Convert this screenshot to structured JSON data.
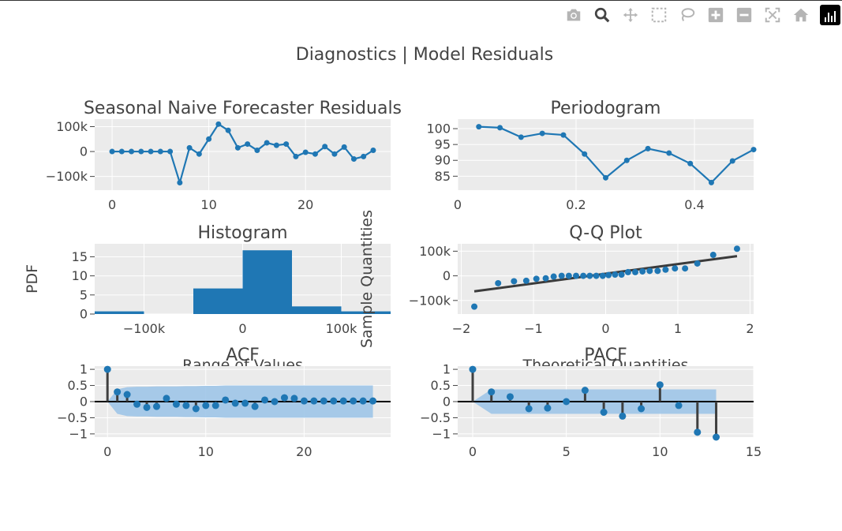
{
  "figure": {
    "title": "Diagnostics | Model Residuals"
  },
  "modebar": {
    "buttons": [
      "camera-icon",
      "zoom-icon",
      "pan-icon",
      "box-select-icon",
      "lasso-icon",
      "zoom-in-icon",
      "zoom-out-icon",
      "autoscale-icon",
      "home-icon",
      "plotly-logo-icon"
    ]
  },
  "colors": {
    "series": "#1f77b4",
    "plot_bg": "#ebebeb",
    "grid": "#ffffff",
    "text": "#444444",
    "qq_line": "#3b3b3b",
    "confint": "#9fc5e8"
  },
  "chart_data": [
    {
      "type": "line",
      "title": "Seasonal Naive Forecaster Residuals",
      "x": [
        0,
        1,
        2,
        3,
        4,
        5,
        6,
        7,
        8,
        9,
        10,
        11,
        12,
        13,
        14,
        15,
        16,
        17,
        18,
        19,
        20,
        21,
        22,
        23,
        24,
        25,
        26,
        27
      ],
      "y": [
        0,
        0,
        0,
        0,
        0,
        0,
        0,
        -125000,
        15000,
        -10000,
        50000,
        110000,
        85000,
        15000,
        30000,
        5000,
        35000,
        25000,
        30000,
        -20000,
        -3000,
        -10000,
        20000,
        -10000,
        18000,
        -30000,
        -20000,
        5000
      ],
      "xlim": [
        -1.8,
        28.8
      ],
      "ylim": [
        -155000,
        130000
      ],
      "xticks": [
        0,
        10,
        20
      ],
      "yticks": [
        -100000,
        0,
        100000
      ],
      "ytick_labels": [
        "−100k",
        "0",
        "100k"
      ]
    },
    {
      "type": "line",
      "title": "Periodogram",
      "x": [
        0.0357,
        0.0714,
        0.1071,
        0.1429,
        0.1786,
        0.2143,
        0.25,
        0.2857,
        0.3214,
        0.3571,
        0.3929,
        0.4286,
        0.4643,
        0.5
      ],
      "y": [
        100.6,
        100.3,
        97.3,
        98.5,
        98.0,
        92.0,
        84.5,
        90.0,
        93.7,
        92.3,
        89.0,
        83.0,
        89.8,
        93.4
      ],
      "xlim": [
        0,
        0.5
      ],
      "ylim": [
        80.6,
        103
      ],
      "xticks": [
        0,
        0.2,
        0.4
      ],
      "yticks": [
        85,
        90,
        95,
        100
      ]
    },
    {
      "type": "bar",
      "title": "Histogram",
      "xlabel": "Range of Values",
      "ylabel": "PDF",
      "bins": [
        {
          "x0": -150000,
          "x1": -100000,
          "value": 0.7
        },
        {
          "x0": -100000,
          "x1": -50000,
          "value": 0
        },
        {
          "x0": -50000,
          "x1": 0,
          "value": 6.7
        },
        {
          "x0": 0,
          "x1": 50000,
          "value": 16.7
        },
        {
          "x0": 50000,
          "x1": 100000,
          "value": 2.0
        },
        {
          "x0": 100000,
          "x1": 150000,
          "value": 0.7
        }
      ],
      "xlim": [
        -150000,
        150000
      ],
      "ylim": [
        0,
        18.4
      ],
      "xticks": [
        -100000,
        0,
        100000
      ],
      "xtick_labels": [
        "−100k",
        "0",
        "100k"
      ],
      "yticks": [
        0,
        5,
        10,
        15
      ]
    },
    {
      "type": "scatter",
      "title": "Q-Q Plot",
      "xlabel": "Theoretical Quantities",
      "ylabel": "Sample Quantities",
      "x": [
        -1.82,
        -1.49,
        -1.27,
        -1.1,
        -0.96,
        -0.83,
        -0.72,
        -0.61,
        -0.51,
        -0.41,
        -0.31,
        -0.22,
        -0.13,
        -0.04,
        0.04,
        0.13,
        0.22,
        0.31,
        0.41,
        0.51,
        0.61,
        0.72,
        0.83,
        0.96,
        1.1,
        1.27,
        1.49,
        1.82
      ],
      "y": [
        -125000,
        -30000,
        -22000,
        -20000,
        -12000,
        -10000,
        -3000,
        0,
        0,
        0,
        0,
        0,
        0,
        0,
        3000,
        5000,
        5000,
        15000,
        15000,
        18000,
        20000,
        20000,
        25000,
        30000,
        30000,
        50000,
        85000,
        110000
      ],
      "line": {
        "x": [
          -1.82,
          1.82
        ],
        "y": [
          -63000,
          80000
        ]
      },
      "xlim": [
        -2.05,
        2.05
      ],
      "ylim": [
        -155000,
        130000
      ],
      "xticks": [
        -2,
        -1,
        0,
        1,
        2
      ],
      "xtick_labels": [
        "−2",
        "−1",
        "0",
        "1",
        "2"
      ],
      "yticks": [
        -100000,
        0,
        100000
      ],
      "ytick_labels": [
        "−100k",
        "0",
        "100k"
      ]
    },
    {
      "type": "bar",
      "title": "ACF",
      "lags": [
        0,
        1,
        2,
        3,
        4,
        5,
        6,
        7,
        8,
        9,
        10,
        11,
        12,
        13,
        14,
        15,
        16,
        17,
        18,
        19,
        20,
        21,
        22,
        23,
        24,
        25,
        26,
        27
      ],
      "values": [
        1.0,
        0.3,
        0.22,
        -0.08,
        -0.18,
        -0.15,
        0.1,
        -0.08,
        -0.12,
        -0.22,
        -0.12,
        -0.12,
        0.05,
        -0.05,
        -0.05,
        -0.15,
        0.05,
        0.0,
        0.12,
        0.1,
        0.02,
        0.02,
        0.02,
        0.02,
        0.02,
        0.02,
        0.02,
        0.02
      ],
      "confint_upper": [
        0,
        0.38,
        0.45,
        0.46,
        0.46,
        0.47,
        0.47,
        0.47,
        0.48,
        0.48,
        0.49,
        0.49,
        0.5,
        0.5,
        0.5,
        0.5,
        0.5,
        0.5,
        0.5,
        0.5,
        0.5,
        0.5,
        0.5,
        0.5,
        0.5,
        0.5,
        0.5,
        0.5
      ],
      "xlim": [
        -1.3,
        28.8
      ],
      "ylim": [
        -1.1,
        1.1
      ],
      "xticks": [
        0,
        10,
        20
      ],
      "yticks": [
        -1,
        -0.5,
        0,
        0.5,
        1
      ],
      "ytick_labels": [
        "−1",
        "−0.5",
        "0",
        "0.5",
        "1"
      ]
    },
    {
      "type": "bar",
      "title": "PACF",
      "lags": [
        0,
        1,
        2,
        3,
        4,
        5,
        6,
        7,
        8,
        9,
        10,
        11,
        12,
        13
      ],
      "values": [
        1.0,
        0.3,
        0.15,
        -0.22,
        -0.2,
        0.0,
        0.35,
        -0.33,
        -0.45,
        -0.22,
        0.52,
        -0.12,
        -0.95,
        -1.1
      ],
      "confint_upper": [
        0,
        0.38,
        0.38,
        0.38,
        0.38,
        0.38,
        0.38,
        0.38,
        0.38,
        0.38,
        0.38,
        0.38,
        0.38,
        0.38
      ],
      "xlim": [
        -0.8,
        15
      ],
      "ylim": [
        -1.1,
        1.1
      ],
      "xticks": [
        0,
        5,
        10,
        15
      ],
      "yticks": [
        -1,
        -0.5,
        0,
        0.5,
        1
      ],
      "ytick_labels": [
        "−1",
        "−0.5",
        "0",
        "0.5",
        "1"
      ]
    }
  ]
}
